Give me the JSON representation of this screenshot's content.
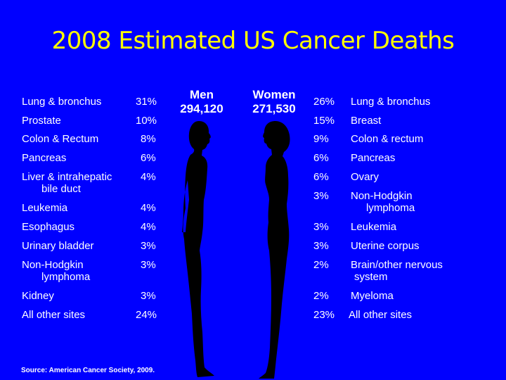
{
  "title": "2008 Estimated US Cancer Deaths",
  "men": {
    "label": "Men",
    "total": "294,120"
  },
  "women": {
    "label": "Women",
    "total": "271,530"
  },
  "men_rows": [
    {
      "site": "Lung & bronchus",
      "pct": "31%"
    },
    {
      "site": "Prostate",
      "pct": "10%"
    },
    {
      "site": "Colon & Rectum",
      "pct": "8%"
    },
    {
      "site": "Pancreas",
      "pct": "6%"
    },
    {
      "site": "Liver & intrahepatic",
      "site2": "bile duct",
      "pct": "4%"
    },
    {
      "site": "Leukemia",
      "pct": "4%"
    },
    {
      "site": "Esophagus",
      "pct": "4%"
    },
    {
      "site": "Urinary bladder",
      "pct": "3%"
    },
    {
      "site": "Non-Hodgkin",
      "site2": "lymphoma",
      "pct": "3%"
    },
    {
      "site": "Kidney",
      "pct": "3%"
    },
    {
      "site": "All other sites",
      "pct": "24%"
    }
  ],
  "women_rows": [
    {
      "site": "Lung & bronchus",
      "pct": "26%"
    },
    {
      "site": "Breast",
      "pct": "15%"
    },
    {
      "site": "Colon & rectum",
      "pct": "9%"
    },
    {
      "site": "Pancreas",
      "pct": "6%"
    },
    {
      "site": "Ovary",
      "pct": "6%"
    },
    {
      "site": "Non-Hodgkin",
      "site2": "lymphoma",
      "pct": "3%"
    },
    {
      "site": "Leukemia",
      "pct": "3%"
    },
    {
      "site": "Uterine corpus",
      "pct": "3%"
    },
    {
      "site": "Brain/other nervous",
      "site2": "system",
      "pct": "2%"
    },
    {
      "site": "Myeloma",
      "pct": "2%"
    },
    {
      "site": "All other sites",
      "pct": "23%"
    }
  ],
  "source": "Source: American Cancer Society, 2009.",
  "colors": {
    "background": "#0000ff",
    "title": "#ffff00",
    "text": "#ffffff",
    "figure": "#000000"
  }
}
